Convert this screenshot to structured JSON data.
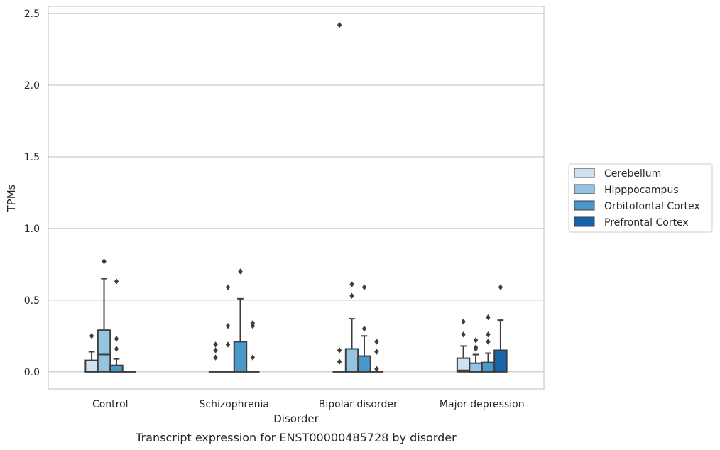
{
  "chart_data": {
    "type": "boxplot",
    "title": "Transcript expression for ENST00000485728 by disorder",
    "xlabel": "Disorder",
    "ylabel": "TPMs",
    "ylim": [
      -0.12,
      2.55
    ],
    "yticks": [
      0.0,
      0.5,
      1.0,
      1.5,
      2.0,
      2.5
    ],
    "ytick_labels": [
      "0.0",
      "0.5",
      "1.0",
      "1.5",
      "2.0",
      "2.5"
    ],
    "grid": true,
    "legend_position": "right",
    "categories": [
      "Control",
      "Schizophrenia",
      "Bipolar disorder",
      "Major depression"
    ],
    "series": [
      {
        "name": "Cerebellum",
        "color": "#d0e1f2",
        "boxes": [
          {
            "q1": 0.0,
            "median": 0.0,
            "q3": 0.08,
            "whislo": 0.0,
            "whishi": 0.14,
            "fliers": [
              0.25
            ]
          },
          {
            "q1": 0.0,
            "median": 0.0,
            "q3": 0.0,
            "whislo": 0.0,
            "whishi": 0.0,
            "fliers": [
              0.1,
              0.15,
              0.19
            ]
          },
          {
            "q1": 0.0,
            "median": 0.0,
            "q3": 0.0,
            "whislo": 0.0,
            "whishi": 0.0,
            "fliers": [
              0.07,
              0.15,
              2.42
            ]
          },
          {
            "q1": 0.0,
            "median": 0.01,
            "q3": 0.095,
            "whislo": 0.0,
            "whishi": 0.18,
            "fliers": [
              0.26,
              0.35
            ]
          }
        ]
      },
      {
        "name": "Hipppocampus",
        "color": "#94c4df",
        "boxes": [
          {
            "q1": 0.0,
            "median": 0.12,
            "q3": 0.29,
            "whislo": 0.0,
            "whishi": 0.65,
            "fliers": [
              0.77
            ]
          },
          {
            "q1": 0.0,
            "median": 0.0,
            "q3": 0.0,
            "whislo": 0.0,
            "whishi": 0.0,
            "fliers": [
              0.19,
              0.32,
              0.59
            ]
          },
          {
            "q1": 0.0,
            "median": 0.0,
            "q3": 0.16,
            "whislo": 0.0,
            "whishi": 0.37,
            "fliers": [
              0.53,
              0.61
            ]
          },
          {
            "q1": 0.0,
            "median": 0.0,
            "q3": 0.06,
            "whislo": 0.0,
            "whishi": 0.12,
            "fliers": [
              0.16,
              0.17,
              0.22
            ]
          }
        ]
      },
      {
        "name": "Orbitofontal Cortex",
        "color": "#4a98c9",
        "boxes": [
          {
            "q1": 0.0,
            "median": 0.0,
            "q3": 0.045,
            "whislo": 0.0,
            "whishi": 0.09,
            "fliers": [
              0.16,
              0.23,
              0.63
            ]
          },
          {
            "q1": 0.0,
            "median": 0.0,
            "q3": 0.21,
            "whislo": 0.0,
            "whishi": 0.51,
            "fliers": [
              0.7
            ]
          },
          {
            "q1": 0.0,
            "median": 0.0,
            "q3": 0.11,
            "whislo": 0.0,
            "whishi": 0.25,
            "fliers": [
              0.3,
              0.59
            ]
          },
          {
            "q1": 0.0,
            "median": 0.0,
            "q3": 0.065,
            "whislo": 0.0,
            "whishi": 0.13,
            "fliers": [
              0.21,
              0.26,
              0.38
            ]
          }
        ]
      },
      {
        "name": "Prefrontal Cortex",
        "color": "#1764ab",
        "boxes": [
          {
            "q1": 0.0,
            "median": 0.0,
            "q3": 0.0,
            "whislo": 0.0,
            "whishi": 0.0,
            "fliers": []
          },
          {
            "q1": 0.0,
            "median": 0.0,
            "q3": 0.0,
            "whislo": 0.0,
            "whishi": 0.0,
            "fliers": [
              0.1,
              0.32,
              0.34
            ]
          },
          {
            "q1": 0.0,
            "median": 0.0,
            "q3": 0.0,
            "whislo": 0.0,
            "whishi": 0.0,
            "fliers": [
              0.02,
              0.14,
              0.21
            ]
          },
          {
            "q1": 0.0,
            "median": 0.0,
            "q3": 0.15,
            "whislo": 0.0,
            "whishi": 0.36,
            "fliers": [
              0.59
            ]
          }
        ]
      }
    ]
  }
}
